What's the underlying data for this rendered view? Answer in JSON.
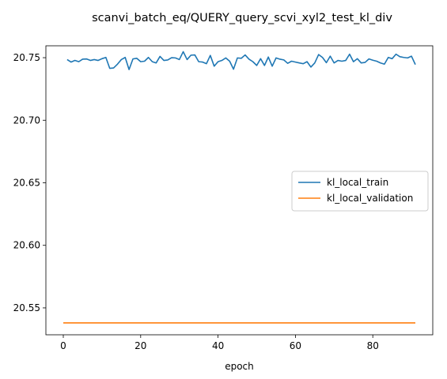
{
  "chart_data": {
    "type": "line",
    "title": "scanvi_batch_eq/QUERY_query_scvi_xyl2_test_kl_div",
    "xlabel": "epoch",
    "ylabel": "",
    "xlim": [
      -4.5,
      95.5
    ],
    "ylim": [
      20.5285,
      20.7595
    ],
    "xticks": [
      0,
      20,
      40,
      60,
      80
    ],
    "yticks": [
      20.55,
      20.6,
      20.65,
      20.7,
      20.75
    ],
    "ytick_labels": [
      "20.55",
      "20.60",
      "20.65",
      "20.70",
      "20.75"
    ],
    "grid": false,
    "legend_position": "center-right",
    "series": [
      {
        "name": "kl_local_train",
        "color": "#1f77b4",
        "x": [
          1,
          2,
          3,
          4,
          5,
          6,
          7,
          8,
          9,
          10,
          11,
          12,
          13,
          14,
          15,
          16,
          17,
          18,
          19,
          20,
          21,
          22,
          23,
          24,
          25,
          26,
          27,
          28,
          29,
          30,
          31,
          32,
          33,
          34,
          35,
          36,
          37,
          38,
          39,
          40,
          41,
          42,
          43,
          44,
          45,
          46,
          47,
          48,
          49,
          50,
          51,
          52,
          53,
          54,
          55,
          56,
          57,
          58,
          59,
          60,
          61,
          62,
          63,
          64,
          65,
          66,
          67,
          68,
          69,
          70,
          71,
          72,
          73,
          74,
          75,
          76,
          77,
          78,
          79,
          80,
          81,
          82,
          83,
          84,
          85,
          86,
          87,
          88,
          89,
          90,
          91
        ],
        "y": [
          20.7485,
          20.7465,
          20.7478,
          20.7468,
          20.7488,
          20.749,
          20.7478,
          20.7485,
          20.7478,
          20.7492,
          20.7502,
          20.7415,
          20.7418,
          20.7448,
          20.7485,
          20.7502,
          20.7405,
          20.749,
          20.7495,
          20.7468,
          20.7472,
          20.7502,
          20.7468,
          20.7458,
          20.751,
          20.7478,
          20.7482,
          20.75,
          20.7498,
          20.7485,
          20.7548,
          20.7485,
          20.752,
          20.7522,
          20.7468,
          20.7465,
          20.7452,
          20.7518,
          20.7432,
          20.7468,
          20.7478,
          20.7498,
          20.7472,
          20.7408,
          20.7498,
          20.7495,
          20.7522,
          20.7488,
          20.7468,
          20.7438,
          20.7492,
          20.7438,
          20.7505,
          20.7432,
          20.7498,
          20.7488,
          20.7482,
          20.7455,
          20.7472,
          20.7465,
          20.7458,
          20.7452,
          20.7468,
          20.7425,
          20.7458,
          20.7525,
          20.7502,
          20.746,
          20.7512,
          20.7458,
          20.7478,
          20.7472,
          20.7478,
          20.7528,
          20.7468,
          20.7492,
          20.7458,
          20.7462,
          20.749,
          20.748,
          20.7472,
          20.7458,
          20.7448,
          20.7502,
          20.7492,
          20.7528,
          20.7508,
          20.7502,
          20.7498,
          20.7512,
          20.7445
        ]
      },
      {
        "name": "kl_local_validation",
        "color": "#ff7f0e",
        "x": [
          0,
          91
        ],
        "y": [
          20.538,
          20.538
        ]
      }
    ]
  }
}
